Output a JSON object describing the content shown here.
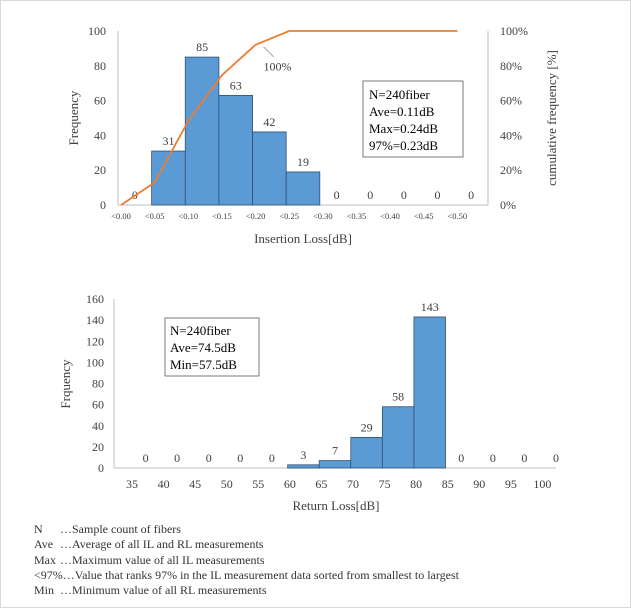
{
  "chart_data": [
    {
      "type": "bar",
      "categories": [
        "<0.00",
        "<0.05",
        "<0.10",
        "<0.15",
        "<0.20",
        "<0.25",
        "<0.30",
        "<0.35",
        "<0.40",
        "<0.45",
        "<0.50"
      ],
      "values": [
        0,
        31,
        85,
        63,
        42,
        19,
        0,
        0,
        0,
        0,
        0
      ],
      "xlabel": "Insertion Loss[dB]",
      "ylabel": "Frequency",
      "ylabel_right": "cumulative frequency [%]",
      "ylim": [
        0,
        100
      ],
      "yticks": [
        "0",
        "20",
        "40",
        "60",
        "80",
        "100"
      ],
      "y2ticks": [
        "0%",
        "20%",
        "40%",
        "60%",
        "80%",
        "100%"
      ],
      "y2lim": [
        0,
        100
      ],
      "cumulative": {
        "x": [
          0.0,
          0.05,
          0.1,
          0.15,
          0.2,
          0.25,
          0.3,
          0.35,
          0.4,
          0.45,
          0.5
        ],
        "values": [
          0,
          12.9,
          48.3,
          74.6,
          92.1,
          100,
          100,
          100,
          100,
          100,
          100
        ],
        "label": "100%"
      },
      "stats_box": [
        "N=240fiber",
        "Ave=0.11dB",
        "Max=0.24dB",
        "97%=0.23dB"
      ],
      "bar_color": "#5b9bd5",
      "line_color": "#ed7d31"
    },
    {
      "type": "bar",
      "categories": [
        "35",
        "40",
        "45",
        "50",
        "55",
        "60",
        "65",
        "70",
        "75",
        "80",
        "85",
        "90",
        "95",
        "100"
      ],
      "values": [
        0,
        0,
        0,
        0,
        0,
        3,
        7,
        29,
        58,
        143,
        0,
        0,
        0,
        0
      ],
      "xlabel": "Return Loss[dB]",
      "ylabel": "Frquency",
      "ylim": [
        0,
        160
      ],
      "yticks": [
        "0",
        "20",
        "40",
        "60",
        "80",
        "100",
        "120",
        "140",
        "160"
      ],
      "stats_box": [
        "N=240fiber",
        "Ave=74.5dB",
        "Min=57.5dB"
      ],
      "bar_color": "#5b9bd5"
    }
  ],
  "legend_notes": [
    {
      "key": "N",
      "text": "…Sample count of fibers"
    },
    {
      "key": "Ave",
      "text": "…Average of all IL and RL measurements"
    },
    {
      "key": "Max",
      "text": "…Maximum value of all IL measurements"
    },
    {
      "key": "<97%",
      "text": "…Value that ranks 97% in the IL measurement data sorted from smallest to largest"
    },
    {
      "key": "Min",
      "text": "…Minimum value of all RL measurements"
    }
  ]
}
